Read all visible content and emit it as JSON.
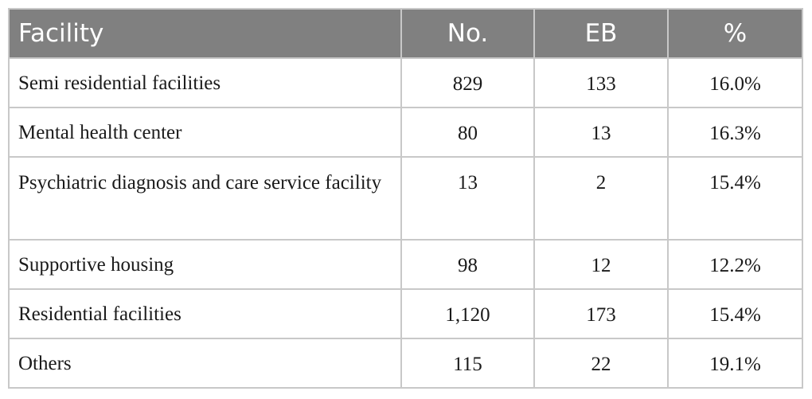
{
  "table": {
    "headers": {
      "facility": "Facility",
      "no": "No.",
      "eb": "EB",
      "pct": "%"
    },
    "rows": [
      {
        "facility": "Semi residential facilities",
        "no": "829",
        "eb": "133",
        "pct": "16.0%"
      },
      {
        "facility": "Mental health center",
        "no": "80",
        "eb": "13",
        "pct": "16.3%"
      },
      {
        "facility": "Psychiatric diagnosis and care service facility",
        "no": "13",
        "eb": "2",
        "pct": "15.4%"
      },
      {
        "facility": "Supportive housing",
        "no": "98",
        "eb": "12",
        "pct": "12.2%"
      },
      {
        "facility": "Residential facilities",
        "no": "1,120",
        "eb": "173",
        "pct": "15.4%"
      },
      {
        "facility": "Others",
        "no": "115",
        "eb": "22",
        "pct": "19.1%"
      }
    ]
  },
  "colors": {
    "header_background": "#808080",
    "header_text": "#ffffff",
    "border": "#c8c8c8",
    "body_text": "#1a1a1a"
  }
}
